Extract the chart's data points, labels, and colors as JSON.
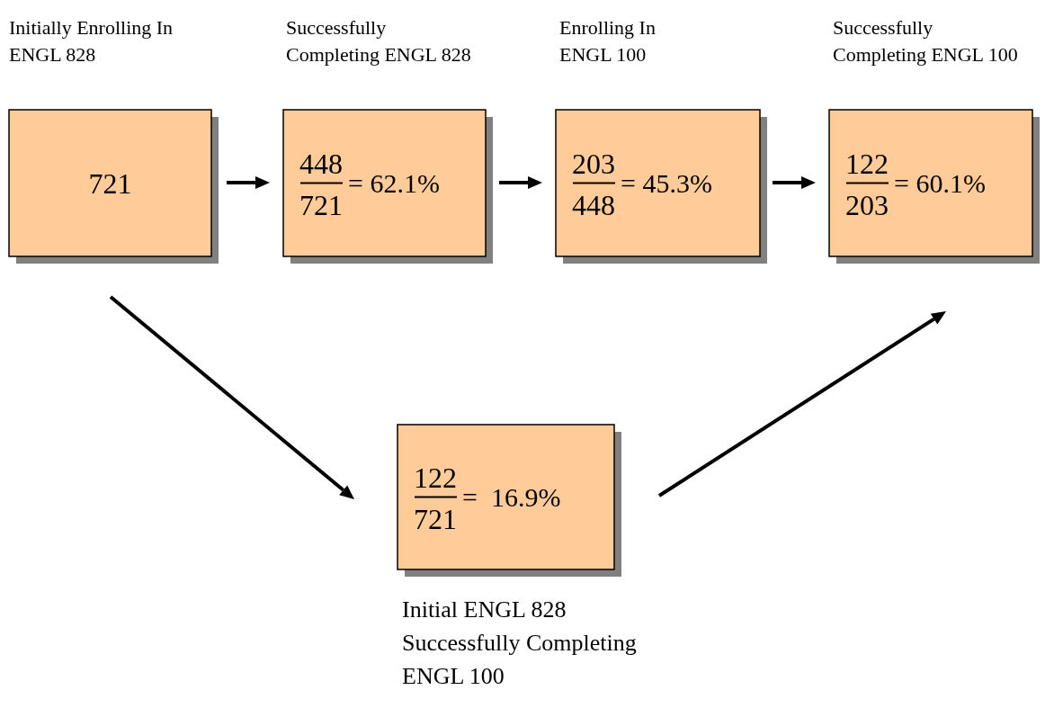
{
  "chart_data": {
    "type": "other",
    "data_labels": true,
    "categories": [
      "Initially Enrolling In\nENGL 828",
      "Successfully\nCompleting ENGL 828",
      "Enrolling In\nENGL 100",
      "Successfully\nCompleting ENGL 100",
      "Initial ENGL 828\nSuccessfully Completing\nENGL 100"
    ],
    "series": [
      {
        "color": "#ffcc99",
        "values": [
          721,
          448,
          203,
          122,
          122
        ]
      },
      {
        "values": [
          null,
          721,
          448,
          203,
          721
        ]
      },
      {
        "values": [
          null,
          62.1,
          45.3,
          60.1,
          16.9
        ],
        "value_labels": [
          null,
          "= 62.1%",
          "= 45.3%",
          "= 60.1%",
          "=  16.9%"
        ]
      }
    ]
  }
}
